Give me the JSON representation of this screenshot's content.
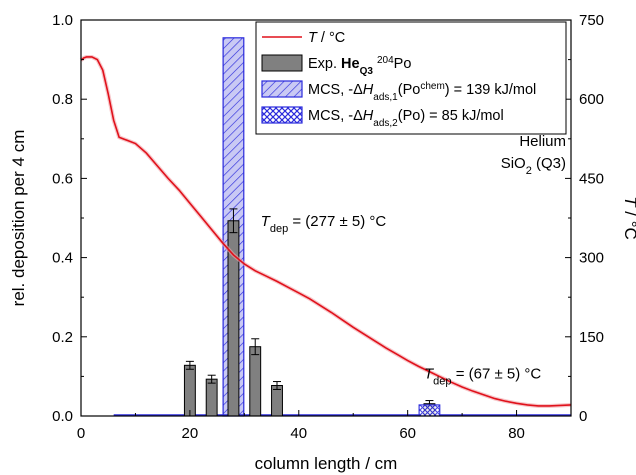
{
  "chart_data": {
    "type": "bar",
    "xlabel": "column length / cm",
    "ylabel": "rel. deposition per 4 cm",
    "ylabel_right": {
      "symbol": "T",
      "unit": " / °C"
    },
    "xlim": [
      0,
      90
    ],
    "ylim": [
      0,
      1.0
    ],
    "ylim_right": [
      0,
      750
    ],
    "xticks": [
      "0",
      "20",
      "40",
      "60",
      "80"
    ],
    "xtick_values": [
      0,
      20,
      40,
      60,
      80
    ],
    "yticks": [
      "0.0",
      "0.2",
      "0.4",
      "0.6",
      "0.8",
      "1.0"
    ],
    "ytick_values": [
      0,
      0.2,
      0.4,
      0.6,
      0.8,
      1.0
    ],
    "yticks_right": [
      "0",
      "150",
      "300",
      "450",
      "600",
      "750"
    ],
    "ytick_right_values": [
      0,
      150,
      300,
      450,
      600,
      750
    ],
    "grid": false,
    "legend_position": "top-right",
    "colors": {
      "temperature": "#e0111b",
      "exp_bar": "#808080",
      "mcs": "#2a2adc"
    },
    "series": [
      {
        "name": "T / °C",
        "type": "line",
        "axis": "right",
        "x": [
          0,
          0.5,
          1,
          2,
          3,
          4,
          5,
          6,
          7,
          8,
          10,
          12,
          14,
          16,
          18,
          20,
          22,
          24,
          26,
          28,
          30,
          32,
          34,
          36,
          38,
          40,
          42,
          44,
          46,
          48,
          50,
          52,
          54,
          56,
          58,
          60,
          62,
          64,
          66,
          68,
          70,
          72,
          74,
          76,
          78,
          80,
          82,
          84,
          86,
          88,
          90
        ],
        "y": [
          674,
          678,
          680,
          680,
          675,
          655,
          610,
          560,
          528,
          524,
          516,
          498,
          474,
          450,
          428,
          403,
          378,
          353,
          328,
          305,
          288,
          275,
          265,
          255,
          244,
          233,
          222,
          209,
          196,
          182,
          168,
          155,
          142,
          129,
          117,
          105,
          94,
          84,
          74,
          64,
          55,
          47,
          40,
          33,
          28,
          24,
          21,
          19,
          19,
          20,
          21
        ]
      },
      {
        "name": "Exp. He_Q3 204Po",
        "type": "bar",
        "x": [
          20,
          24,
          28,
          32,
          36,
          64
        ],
        "values": [
          0.128,
          0.093,
          0.493,
          0.175,
          0.077,
          0.031
        ],
        "errors": [
          0.01,
          0.01,
          0.03,
          0.02,
          0.01,
          0.008
        ],
        "width": 2
      },
      {
        "name": "MCS, -ΔH_ads,1(Po^chem) = 139 kJ/mol",
        "type": "bar",
        "pattern": "hatch",
        "x": [
          28
        ],
        "values": [
          0.955
        ],
        "width": 3.8
      },
      {
        "name": "MCS, -ΔH_ads,2(Po) = 85 kJ/mol",
        "type": "bar",
        "pattern": "crosshatch",
        "x": [
          64
        ],
        "values": [
          0.028
        ],
        "width": 3.8
      },
      {
        "name": "MCS baseline",
        "type": "line",
        "axis": "left",
        "x": [
          6,
          26,
          30,
          62,
          66,
          90
        ],
        "y": [
          0,
          0,
          0,
          0,
          0,
          0
        ]
      }
    ],
    "legend": [
      {
        "kind": "line",
        "segments": [
          {
            "t": "T",
            "i": true
          },
          {
            "t": " / °C"
          }
        ]
      },
      {
        "kind": "bar",
        "segments": [
          {
            "t": "Exp. "
          },
          {
            "t": "He",
            "b": true
          },
          {
            "t": "Q3",
            "b": true,
            "sub": true
          },
          {
            "t": " "
          },
          {
            "t": "204",
            "sup": true
          },
          {
            "t": "Po"
          }
        ]
      },
      {
        "kind": "hatch",
        "segments": [
          {
            "t": "MCS, -Δ"
          },
          {
            "t": "H",
            "i": true
          },
          {
            "t": "ads,1",
            "sub": true
          },
          {
            "t": "(Po"
          },
          {
            "t": "chem",
            "sup": true
          },
          {
            "t": ") = 139 kJ/mol"
          }
        ]
      },
      {
        "kind": "cross",
        "segments": [
          {
            "t": "MCS, -Δ"
          },
          {
            "t": "H",
            "i": true
          },
          {
            "t": "ads,2",
            "sub": true
          },
          {
            "t": "(Po) = 85 kJ/mol"
          }
        ]
      }
    ],
    "annotations": [
      {
        "name": "tdep-277",
        "x": 33,
        "y": 0.48,
        "segments": [
          {
            "t": "T",
            "i": true
          },
          {
            "t": "dep",
            "sub": true
          },
          {
            "t": " = (277 ± 5) °C"
          }
        ]
      },
      {
        "name": "tdep-67",
        "x": 63,
        "y": 0.095,
        "segments": [
          {
            "t": "T",
            "i": true
          },
          {
            "t": "dep",
            "sub": true
          },
          {
            "t": " = (67 ± 5) °C"
          }
        ]
      }
    ],
    "conditions": [
      {
        "name": "helium-label",
        "segments": [
          {
            "t": "Helium"
          }
        ]
      },
      {
        "name": "sio2-label",
        "segments": [
          {
            "t": "SiO"
          },
          {
            "t": "2",
            "sub": true
          },
          {
            "t": " (Q3)"
          }
        ]
      }
    ]
  }
}
